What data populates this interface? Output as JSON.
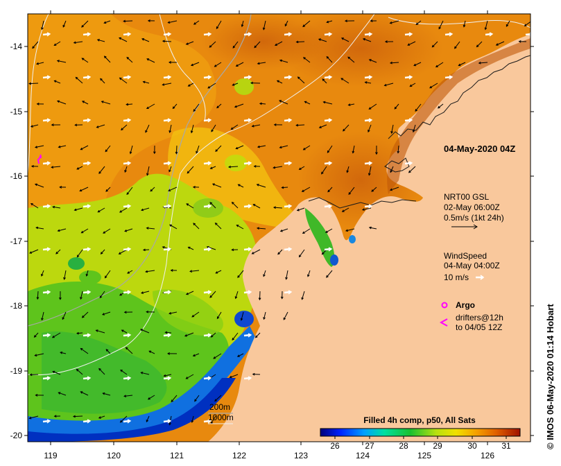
{
  "map": {
    "lon_ticks": [
      "119",
      "120",
      "121",
      "122",
      "123",
      "124",
      "125",
      "126"
    ],
    "lat_ticks": [
      "-14",
      "-15",
      "-16",
      "-17",
      "-18",
      "-19",
      "-20"
    ]
  },
  "legend": {
    "datetime": "04-May-2020 04Z",
    "current_title": "NRT00 GSL",
    "current_time": "02-May 06:00Z",
    "current_scale": "0.5m/s (1kt 24h)",
    "wind_title": "WindSpeed",
    "wind_time": "04-May 04:00Z",
    "wind_scale": "10 m/s",
    "argo_label": "Argo",
    "drifters_line1": "drifters@12h",
    "drifters_line2": "to 04/05 12Z",
    "depth_200": "200m",
    "depth_1000": "1000m"
  },
  "colorbar": {
    "title": "Filled 4h comp, p50, All Sats",
    "ticks": [
      "26",
      "27",
      "28",
      "29",
      "30",
      "31"
    ]
  },
  "credit": "© IMOS 06-May-2020 01:14 Hobart",
  "colors": {
    "land": "#f9c89c",
    "warm": "#e2780c",
    "mid": "#f5a80c",
    "cool": "#a6d60c",
    "cold": "#18b43c"
  }
}
